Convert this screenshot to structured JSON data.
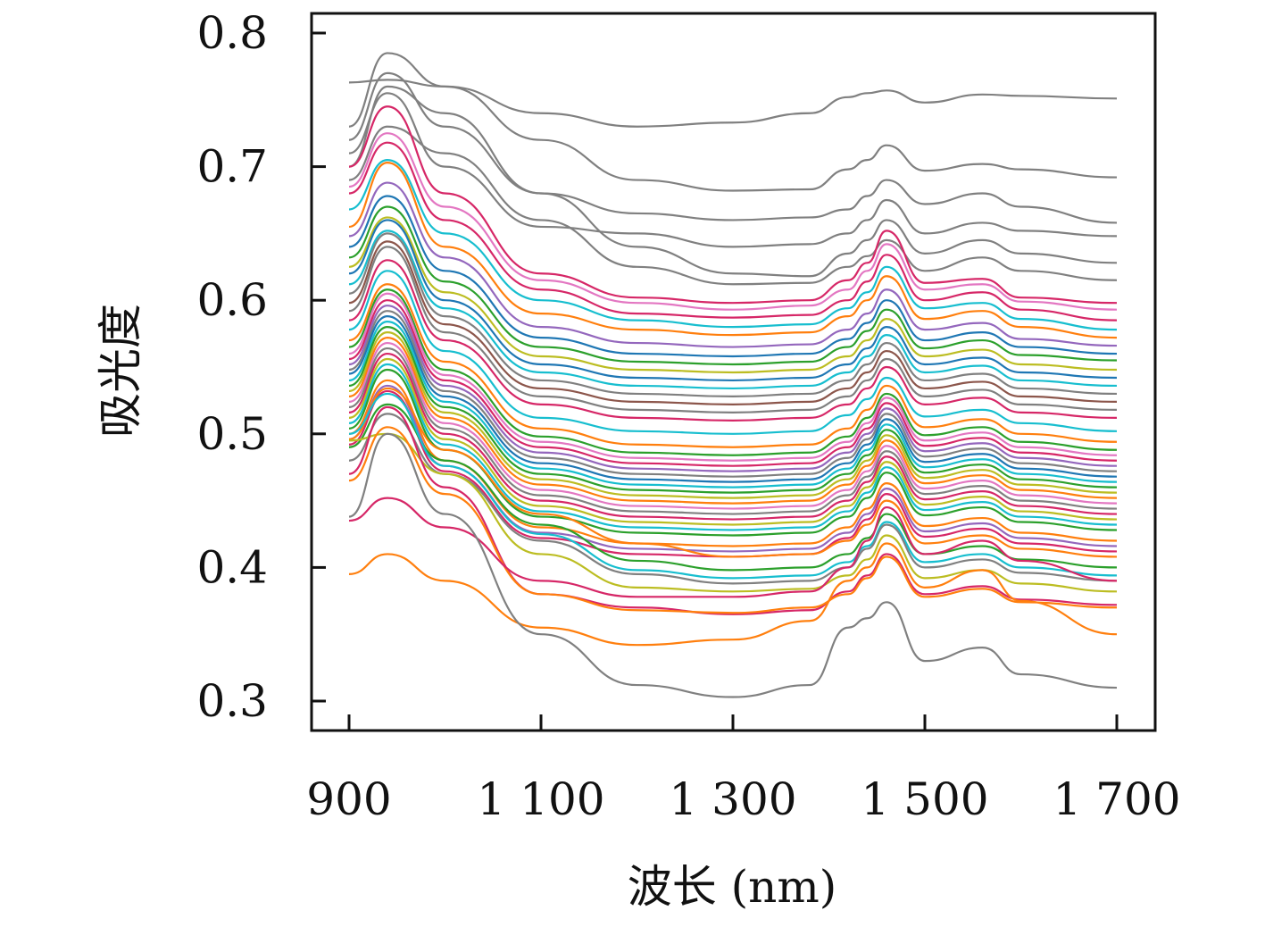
{
  "chart_data": {
    "type": "line",
    "title": "",
    "xlabel": "波长 (nm)",
    "ylabel": "吸光度",
    "xlim": [
      900,
      1700
    ],
    "ylim": [
      0.3,
      0.8
    ],
    "x_ticks": [
      900,
      1100,
      1300,
      1500,
      1700
    ],
    "x_tick_labels": [
      "900",
      "1 100",
      "1 300",
      "1 500",
      "1 700"
    ],
    "y_ticks": [
      0.3,
      0.4,
      0.5,
      0.6,
      0.7,
      0.8
    ],
    "y_tick_labels": [
      "0.3",
      "0.4",
      "0.5",
      "0.6",
      "0.7",
      "0.8"
    ],
    "grid": false,
    "legend": "none",
    "x": [
      900,
      940,
      1000,
      1100,
      1200,
      1300,
      1380,
      1420,
      1440,
      1460,
      1500,
      1560,
      1600,
      1700
    ],
    "series": [
      {
        "color": "#808080",
        "values": [
          0.763,
          0.765,
          0.76,
          0.74,
          0.73,
          0.733,
          0.74,
          0.752,
          0.755,
          0.757,
          0.748,
          0.754,
          0.753,
          0.751
        ]
      },
      {
        "color": "#808080",
        "values": [
          0.73,
          0.785,
          0.76,
          0.72,
          0.69,
          0.682,
          0.683,
          0.698,
          0.705,
          0.716,
          0.697,
          0.702,
          0.698,
          0.692
        ]
      },
      {
        "color": "#808080",
        "values": [
          0.72,
          0.77,
          0.73,
          0.68,
          0.665,
          0.66,
          0.662,
          0.668,
          0.678,
          0.69,
          0.672,
          0.68,
          0.67,
          0.658
        ]
      },
      {
        "color": "#808080",
        "values": [
          0.71,
          0.755,
          0.7,
          0.655,
          0.65,
          0.64,
          0.642,
          0.65,
          0.66,
          0.675,
          0.65,
          0.658,
          0.652,
          0.648
        ]
      },
      {
        "color": "#808080",
        "values": [
          0.7,
          0.76,
          0.74,
          0.68,
          0.64,
          0.62,
          0.618,
          0.635,
          0.645,
          0.66,
          0.635,
          0.645,
          0.635,
          0.628
        ]
      },
      {
        "color": "#808080",
        "values": [
          0.69,
          0.73,
          0.71,
          0.66,
          0.625,
          0.612,
          0.613,
          0.625,
          0.633,
          0.645,
          0.622,
          0.632,
          0.622,
          0.615
        ]
      },
      {
        "color": "#d62767",
        "values": [
          0.7,
          0.745,
          0.68,
          0.62,
          0.602,
          0.598,
          0.6,
          0.615,
          0.628,
          0.652,
          0.613,
          0.616,
          0.602,
          0.598
        ]
      },
      {
        "color": "#e377c2",
        "values": [
          0.685,
          0.725,
          0.67,
          0.615,
          0.598,
          0.593,
          0.596,
          0.608,
          0.622,
          0.642,
          0.608,
          0.612,
          0.599,
          0.593
        ]
      },
      {
        "color": "#d62767",
        "values": [
          0.68,
          0.718,
          0.66,
          0.608,
          0.59,
          0.587,
          0.589,
          0.6,
          0.614,
          0.634,
          0.6,
          0.606,
          0.593,
          0.585
        ]
      },
      {
        "color": "#17becf",
        "values": [
          0.668,
          0.705,
          0.65,
          0.6,
          0.585,
          0.58,
          0.582,
          0.594,
          0.606,
          0.625,
          0.594,
          0.598,
          0.586,
          0.578
        ]
      },
      {
        "color": "#ff7f0e",
        "values": [
          0.655,
          0.703,
          0.64,
          0.59,
          0.578,
          0.574,
          0.576,
          0.588,
          0.6,
          0.618,
          0.586,
          0.592,
          0.58,
          0.572
        ]
      },
      {
        "color": "#9467bd",
        "values": [
          0.648,
          0.688,
          0.632,
          0.58,
          0.568,
          0.565,
          0.567,
          0.578,
          0.59,
          0.608,
          0.578,
          0.583,
          0.571,
          0.566
        ]
      },
      {
        "color": "#1f77b4",
        "values": [
          0.64,
          0.678,
          0.622,
          0.572,
          0.56,
          0.558,
          0.56,
          0.571,
          0.583,
          0.6,
          0.57,
          0.576,
          0.565,
          0.56
        ]
      },
      {
        "color": "#2ca02c",
        "values": [
          0.632,
          0.67,
          0.614,
          0.565,
          0.554,
          0.552,
          0.554,
          0.565,
          0.577,
          0.593,
          0.564,
          0.57,
          0.559,
          0.555
        ]
      },
      {
        "color": "#bcbd22",
        "values": [
          0.625,
          0.662,
          0.606,
          0.558,
          0.548,
          0.546,
          0.548,
          0.558,
          0.57,
          0.586,
          0.558,
          0.563,
          0.552,
          0.548
        ]
      },
      {
        "color": "#1f77b4",
        "values": [
          0.62,
          0.66,
          0.6,
          0.552,
          0.542,
          0.54,
          0.542,
          0.552,
          0.564,
          0.58,
          0.552,
          0.557,
          0.546,
          0.542
        ]
      },
      {
        "color": "#17becf",
        "values": [
          0.612,
          0.652,
          0.594,
          0.546,
          0.536,
          0.534,
          0.536,
          0.546,
          0.558,
          0.574,
          0.546,
          0.551,
          0.54,
          0.536
        ]
      },
      {
        "color": "#808080",
        "values": [
          0.605,
          0.65,
          0.588,
          0.54,
          0.53,
          0.528,
          0.53,
          0.54,
          0.552,
          0.568,
          0.54,
          0.545,
          0.534,
          0.53
        ]
      },
      {
        "color": "#8c564b",
        "values": [
          0.598,
          0.644,
          0.582,
          0.534,
          0.524,
          0.522,
          0.524,
          0.534,
          0.546,
          0.562,
          0.534,
          0.539,
          0.528,
          0.524
        ]
      },
      {
        "color": "#7f7f7f",
        "values": [
          0.592,
          0.64,
          0.576,
          0.528,
          0.518,
          0.516,
          0.518,
          0.528,
          0.54,
          0.556,
          0.528,
          0.533,
          0.522,
          0.518
        ]
      },
      {
        "color": "#d62767",
        "values": [
          0.585,
          0.63,
          0.57,
          0.522,
          0.512,
          0.51,
          0.512,
          0.522,
          0.534,
          0.55,
          0.522,
          0.527,
          0.516,
          0.512
        ]
      },
      {
        "color": "#17becf",
        "values": [
          0.578,
          0.622,
          0.562,
          0.512,
          0.502,
          0.5,
          0.502,
          0.514,
          0.526,
          0.542,
          0.513,
          0.518,
          0.508,
          0.502
        ]
      },
      {
        "color": "#ff7f0e",
        "values": [
          0.57,
          0.612,
          0.554,
          0.504,
          0.492,
          0.49,
          0.492,
          0.504,
          0.518,
          0.536,
          0.505,
          0.511,
          0.5,
          0.494
        ]
      },
      {
        "color": "#2ca02c",
        "values": [
          0.565,
          0.608,
          0.548,
          0.498,
          0.486,
          0.484,
          0.486,
          0.498,
          0.512,
          0.53,
          0.499,
          0.505,
          0.494,
          0.488
        ]
      },
      {
        "color": "#e377c2",
        "values": [
          0.56,
          0.605,
          0.544,
          0.494,
          0.482,
          0.48,
          0.482,
          0.494,
          0.508,
          0.527,
          0.495,
          0.501,
          0.49,
          0.484
        ]
      },
      {
        "color": "#d62767",
        "values": [
          0.556,
          0.6,
          0.54,
          0.49,
          0.478,
          0.476,
          0.478,
          0.49,
          0.504,
          0.523,
          0.491,
          0.497,
          0.486,
          0.48
        ]
      },
      {
        "color": "#9467bd",
        "values": [
          0.552,
          0.596,
          0.536,
          0.486,
          0.474,
          0.472,
          0.474,
          0.486,
          0.5,
          0.519,
          0.487,
          0.493,
          0.482,
          0.476
        ]
      },
      {
        "color": "#808080",
        "values": [
          0.548,
          0.592,
          0.532,
          0.482,
          0.47,
          0.468,
          0.47,
          0.482,
          0.496,
          0.515,
          0.483,
          0.489,
          0.478,
          0.472
        ]
      },
      {
        "color": "#1f77b4",
        "values": [
          0.545,
          0.588,
          0.528,
          0.478,
          0.466,
          0.464,
          0.466,
          0.478,
          0.492,
          0.511,
          0.479,
          0.485,
          0.474,
          0.468
        ]
      },
      {
        "color": "#17becf",
        "values": [
          0.54,
          0.584,
          0.524,
          0.474,
          0.462,
          0.46,
          0.462,
          0.474,
          0.488,
          0.507,
          0.475,
          0.481,
          0.47,
          0.464
        ]
      },
      {
        "color": "#2ca02c",
        "values": [
          0.536,
          0.58,
          0.52,
          0.47,
          0.458,
          0.456,
          0.458,
          0.47,
          0.484,
          0.503,
          0.471,
          0.477,
          0.466,
          0.46
        ]
      },
      {
        "color": "#bcbd22",
        "values": [
          0.532,
          0.576,
          0.516,
          0.466,
          0.454,
          0.452,
          0.454,
          0.466,
          0.48,
          0.499,
          0.467,
          0.473,
          0.462,
          0.456
        ]
      },
      {
        "color": "#ff7f0e",
        "values": [
          0.528,
          0.572,
          0.512,
          0.462,
          0.45,
          0.448,
          0.45,
          0.462,
          0.476,
          0.495,
          0.463,
          0.469,
          0.458,
          0.452
        ]
      },
      {
        "color": "#e377c2",
        "values": [
          0.524,
          0.568,
          0.508,
          0.458,
          0.446,
          0.444,
          0.446,
          0.458,
          0.472,
          0.491,
          0.459,
          0.465,
          0.454,
          0.448
        ]
      },
      {
        "color": "#808080",
        "values": [
          0.52,
          0.564,
          0.504,
          0.454,
          0.442,
          0.44,
          0.442,
          0.454,
          0.468,
          0.487,
          0.455,
          0.461,
          0.45,
          0.444
        ]
      },
      {
        "color": "#d62767",
        "values": [
          0.516,
          0.56,
          0.5,
          0.45,
          0.438,
          0.436,
          0.438,
          0.45,
          0.464,
          0.483,
          0.451,
          0.457,
          0.446,
          0.44
        ]
      },
      {
        "color": "#bcbd22",
        "values": [
          0.512,
          0.556,
          0.496,
          0.446,
          0.434,
          0.432,
          0.434,
          0.446,
          0.46,
          0.479,
          0.447,
          0.453,
          0.442,
          0.436
        ]
      },
      {
        "color": "#17becf",
        "values": [
          0.508,
          0.552,
          0.492,
          0.442,
          0.43,
          0.428,
          0.43,
          0.442,
          0.456,
          0.475,
          0.443,
          0.449,
          0.438,
          0.432
        ]
      },
      {
        "color": "#2ca02c",
        "values": [
          0.504,
          0.548,
          0.488,
          0.438,
          0.426,
          0.424,
          0.426,
          0.438,
          0.452,
          0.471,
          0.439,
          0.445,
          0.434,
          0.428
        ]
      },
      {
        "color": "#ff7f0e",
        "values": [
          0.5,
          0.54,
          0.48,
          0.43,
          0.418,
          0.416,
          0.418,
          0.43,
          0.444,
          0.463,
          0.431,
          0.437,
          0.426,
          0.42
        ]
      },
      {
        "color": "#9467bd",
        "values": [
          0.496,
          0.536,
          0.476,
          0.426,
          0.414,
          0.412,
          0.414,
          0.426,
          0.44,
          0.459,
          0.427,
          0.433,
          0.422,
          0.416
        ]
      },
      {
        "color": "#d62767",
        "values": [
          0.492,
          0.532,
          0.472,
          0.422,
          0.41,
          0.408,
          0.41,
          0.422,
          0.436,
          0.455,
          0.423,
          0.429,
          0.418,
          0.412
        ]
      },
      {
        "color": "#ff7f0e",
        "values": [
          0.496,
          0.534,
          0.488,
          0.44,
          0.418,
          0.408,
          0.41,
          0.42,
          0.432,
          0.45,
          0.418,
          0.424,
          0.414,
          0.408
        ]
      },
      {
        "color": "#2ca02c",
        "values": [
          0.49,
          0.522,
          0.48,
          0.432,
          0.405,
          0.398,
          0.4,
          0.41,
          0.422,
          0.44,
          0.41,
          0.416,
          0.406,
          0.4
        ]
      },
      {
        "color": "#17becf",
        "values": [
          0.5,
          0.53,
          0.476,
          0.425,
          0.398,
          0.392,
          0.394,
          0.404,
          0.416,
          0.434,
          0.404,
          0.41,
          0.4,
          0.394
        ]
      },
      {
        "color": "#808080",
        "values": [
          0.48,
          0.515,
          0.47,
          0.42,
          0.395,
          0.388,
          0.39,
          0.4,
          0.414,
          0.432,
          0.4,
          0.406,
          0.396,
          0.39
        ]
      },
      {
        "color": "#bcbd22",
        "values": [
          0.495,
          0.5,
          0.47,
          0.41,
          0.385,
          0.382,
          0.384,
          0.394,
          0.406,
          0.424,
          0.392,
          0.398,
          0.388,
          0.382
        ]
      },
      {
        "color": "#d62767",
        "values": [
          0.47,
          0.52,
          0.46,
          0.38,
          0.37,
          0.365,
          0.368,
          0.382,
          0.394,
          0.41,
          0.38,
          0.386,
          0.376,
          0.372
        ]
      },
      {
        "color": "#ff7f0e",
        "values": [
          0.465,
          0.505,
          0.455,
          0.38,
          0.368,
          0.366,
          0.37,
          0.38,
          0.392,
          0.408,
          0.378,
          0.384,
          0.374,
          0.37
        ]
      },
      {
        "color": "#d62767",
        "values": [
          0.435,
          0.452,
          0.43,
          0.39,
          0.378,
          0.378,
          0.382,
          0.4,
          0.42,
          0.445,
          0.41,
          0.42,
          0.405,
          0.39
        ]
      },
      {
        "color": "#ff7f0e",
        "values": [
          0.395,
          0.41,
          0.39,
          0.355,
          0.342,
          0.346,
          0.36,
          0.39,
          0.4,
          0.418,
          0.385,
          0.398,
          0.375,
          0.35
        ]
      },
      {
        "color": "#808080",
        "values": [
          0.438,
          0.5,
          0.44,
          0.35,
          0.312,
          0.303,
          0.312,
          0.355,
          0.362,
          0.374,
          0.33,
          0.34,
          0.32,
          0.31
        ]
      }
    ]
  }
}
